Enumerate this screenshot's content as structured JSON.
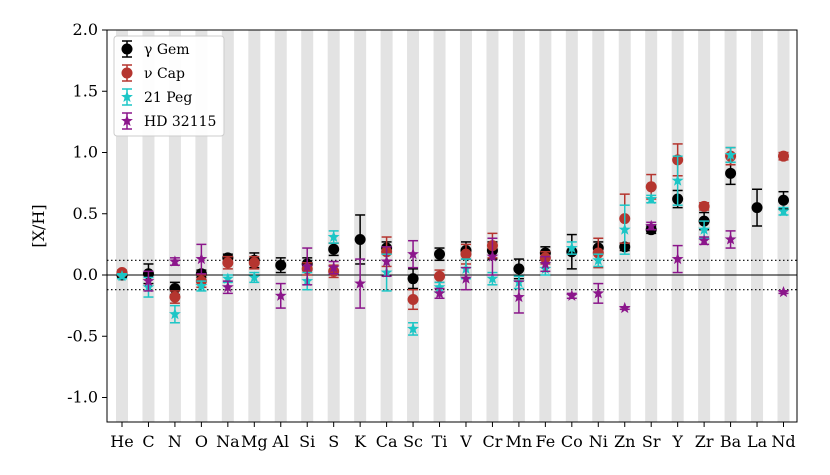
{
  "chart_data": {
    "type": "scatter",
    "ylabel": "[X/H]",
    "ylim": [
      -1.2,
      2.0
    ],
    "yticks": [
      "-1.0",
      "-0.5",
      "0.0",
      "0.5",
      "1.0",
      "1.5",
      "2.0"
    ],
    "categories": [
      "He",
      "C",
      "N",
      "O",
      "Na",
      "Mg",
      "Al",
      "Si",
      "S",
      "K",
      "Ca",
      "Sc",
      "Ti",
      "V",
      "Cr",
      "Mn",
      "Fe",
      "Co",
      "Ni",
      "Zn",
      "Sr",
      "Y",
      "Zr",
      "Ba",
      "La",
      "Nd"
    ],
    "shaded_bands": true,
    "reference_lines": [
      0.0
    ],
    "dotted_lines": [
      0.12,
      -0.12
    ],
    "legend_position": "top-left",
    "series": [
      {
        "name": "γ Gem",
        "color": "#000000",
        "marker": "circle",
        "offset": 0.0,
        "values": [
          0.0,
          0.01,
          -0.11,
          0.01,
          0.14,
          0.12,
          0.08,
          0.09,
          0.21,
          0.29,
          0.22,
          -0.03,
          0.17,
          0.2,
          0.2,
          0.05,
          0.18,
          0.19,
          0.22,
          0.23,
          0.37,
          0.62,
          0.44,
          0.83,
          0.55,
          0.61
        ],
        "errors": [
          0.02,
          0.08,
          0.05,
          0.03,
          0.03,
          0.06,
          0.06,
          0.05,
          0.05,
          0.2,
          0.05,
          0.08,
          0.05,
          0.07,
          0.07,
          0.08,
          0.05,
          0.14,
          0.05,
          0.03,
          0.03,
          0.07,
          0.07,
          0.09,
          0.15,
          0.07
        ]
      },
      {
        "name": "ν Cap",
        "color": "#b5352f",
        "marker": "circle",
        "offset": 0.0,
        "values": [
          0.02,
          null,
          -0.18,
          -0.05,
          0.1,
          0.1,
          null,
          0.05,
          0.03,
          null,
          0.19,
          -0.2,
          -0.01,
          0.17,
          0.24,
          null,
          0.14,
          null,
          0.18,
          0.46,
          0.72,
          0.94,
          0.56,
          0.97,
          null,
          0.97
        ],
        "errors": [
          0.02,
          null,
          0.05,
          0.05,
          0.05,
          0.05,
          null,
          0.05,
          0.05,
          null,
          0.12,
          0.08,
          0.05,
          0.08,
          0.1,
          null,
          0.05,
          null,
          0.12,
          0.2,
          0.1,
          0.13,
          0.03,
          0.07,
          null,
          0.03
        ]
      },
      {
        "name": "21 Peg",
        "color": "#1cc6c6",
        "marker": "star",
        "offset": 0.0,
        "values": [
          -0.01,
          -0.1,
          -0.32,
          -0.09,
          -0.03,
          -0.02,
          null,
          -0.05,
          0.31,
          null,
          0.02,
          -0.44,
          -0.1,
          0.05,
          -0.03,
          -0.06,
          0.05,
          0.22,
          0.12,
          0.37,
          0.62,
          0.77,
          0.37,
          0.98,
          null,
          0.52
        ],
        "errors": [
          0.02,
          0.08,
          0.07,
          0.04,
          0.03,
          0.04,
          null,
          0.07,
          0.05,
          null,
          0.15,
          0.05,
          0.04,
          0.08,
          0.05,
          0.05,
          0.05,
          0.05,
          0.05,
          0.2,
          0.03,
          0.2,
          0.07,
          0.06,
          null,
          0.03
        ]
      },
      {
        "name": "HD 32115",
        "color": "#8b168b",
        "marker": "star",
        "offset": 0.0,
        "values": [
          null,
          -0.05,
          0.11,
          0.13,
          -0.1,
          null,
          -0.17,
          0.07,
          0.06,
          -0.07,
          0.11,
          0.17,
          -0.15,
          -0.03,
          0.15,
          -0.18,
          0.09,
          -0.17,
          -0.15,
          -0.27,
          0.4,
          0.13,
          0.28,
          0.29,
          null,
          -0.14
        ],
        "errors": [
          null,
          0.08,
          0.03,
          0.12,
          0.05,
          null,
          0.1,
          0.15,
          0.05,
          0.2,
          0.12,
          0.11,
          0.04,
          0.09,
          0.15,
          0.13,
          0.06,
          0.02,
          0.08,
          0.01,
          0.03,
          0.11,
          0.03,
          0.07,
          null,
          0.01
        ]
      }
    ]
  }
}
